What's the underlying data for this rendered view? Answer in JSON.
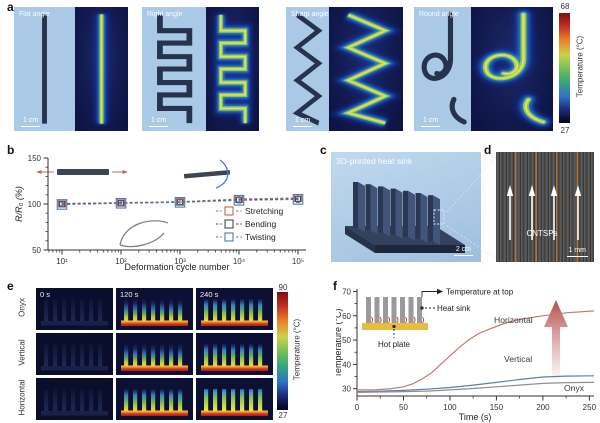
{
  "figure": {
    "panel_labels": {
      "a": "a",
      "b": "b",
      "c": "c",
      "d": "d",
      "e": "e",
      "f": "f"
    }
  },
  "panel_a": {
    "items": [
      {
        "name": "Flat angle",
        "scale": "1 cm"
      },
      {
        "name": "Right angle",
        "scale": "1 cm"
      },
      {
        "name": "Sharp angle",
        "scale": "1 cm"
      },
      {
        "name": "Round angle",
        "scale": "1 cm"
      }
    ],
    "colorbar": {
      "max": "68",
      "min": "27",
      "label": "Temperature (°C)"
    }
  },
  "panel_c": {
    "title": "3D-printed heat sink",
    "scale": "2 cm"
  },
  "panel_d": {
    "annotation": "CNTSPs",
    "scale": "1 mm"
  },
  "panel_e": {
    "rows": [
      "Onyx",
      "Vertical",
      "Horizontal"
    ],
    "times": [
      "0 s",
      "120 s",
      "240 s"
    ],
    "colorbar": {
      "max": "90",
      "min": "27",
      "label": "Temperature (°C)"
    }
  },
  "panel_f_annotations": {
    "temp_top": "Temperature at top",
    "heat_sink": "Heat sink",
    "hot_plate": "Hot plate"
  },
  "chart_data": [
    {
      "panel": "b",
      "type": "scatter",
      "x_scale": "log",
      "x": [
        10,
        100,
        1000,
        10000,
        100000
      ],
      "xtick_labels": [
        "10¹",
        "10²",
        "10³",
        "10⁴",
        "10⁵"
      ],
      "series": [
        {
          "name": "Stretching",
          "color": "#c4675c",
          "values": [
            100.5,
            101.5,
            102.5,
            105.5,
            106.5
          ],
          "error": [
            2.5,
            2.5,
            3,
            3.5,
            4
          ]
        },
        {
          "name": "Bending",
          "color": "#4a4a4a",
          "values": [
            100,
            101,
            102,
            104.5,
            105.5
          ],
          "error": [
            2,
            2.5,
            3,
            3,
            3
          ]
        },
        {
          "name": "Twisting",
          "color": "#4d79ae",
          "values": [
            99.5,
            100.8,
            101.8,
            104,
            105
          ],
          "error": [
            2.5,
            2.5,
            3,
            3,
            3.5
          ]
        }
      ],
      "xlabel": "Deformation cycle number",
      "ylabel": "R/R₀ (%)",
      "ylim": [
        50,
        150
      ],
      "yticks": [
        50,
        100,
        150
      ],
      "legend_position": "bottom-right"
    },
    {
      "panel": "f",
      "type": "line",
      "xlabel": "Time (s)",
      "ylabel": "Temperature (°C)",
      "xlim": [
        0,
        255
      ],
      "ylim": [
        27,
        71
      ],
      "xticks": [
        0,
        50,
        100,
        150,
        200,
        250
      ],
      "yticks": [
        30,
        40,
        50,
        60,
        70
      ],
      "series": [
        {
          "name": "Horizontal",
          "color": "#bf7d72",
          "points": [
            [
              0,
              29.5
            ],
            [
              20,
              29.6
            ],
            [
              35,
              29.9
            ],
            [
              50,
              30.8
            ],
            [
              60,
              32
            ],
            [
              70,
              34
            ],
            [
              80,
              36.5
            ],
            [
              90,
              40
            ],
            [
              100,
              43.5
            ],
            [
              110,
              47
            ],
            [
              120,
              50
            ],
            [
              130,
              52.5
            ],
            [
              140,
              54.2
            ],
            [
              150,
              55.6
            ],
            [
              160,
              57
            ],
            [
              175,
              58.5
            ],
            [
              200,
              60
            ],
            [
              225,
              61.2
            ],
            [
              255,
              62
            ]
          ]
        },
        {
          "name": "Vertical",
          "color": "#5b80a8",
          "points": [
            [
              0,
              28.8
            ],
            [
              25,
              29
            ],
            [
              50,
              29.3
            ],
            [
              75,
              29.8
            ],
            [
              100,
              30.5
            ],
            [
              125,
              31.5
            ],
            [
              150,
              32.6
            ],
            [
              175,
              33.8
            ],
            [
              200,
              34.8
            ],
            [
              225,
              35.2
            ],
            [
              255,
              35.3
            ]
          ]
        },
        {
          "name": "Onyx",
          "color": "#8f8f8f",
          "points": [
            [
              0,
              28.5
            ],
            [
              50,
              28.8
            ],
            [
              75,
              29
            ],
            [
              100,
              29.5
            ],
            [
              125,
              30.1
            ],
            [
              150,
              30.8
            ],
            [
              175,
              31.5
            ],
            [
              200,
              32.2
            ],
            [
              225,
              32.5
            ],
            [
              255,
              32.6
            ]
          ]
        }
      ]
    }
  ]
}
